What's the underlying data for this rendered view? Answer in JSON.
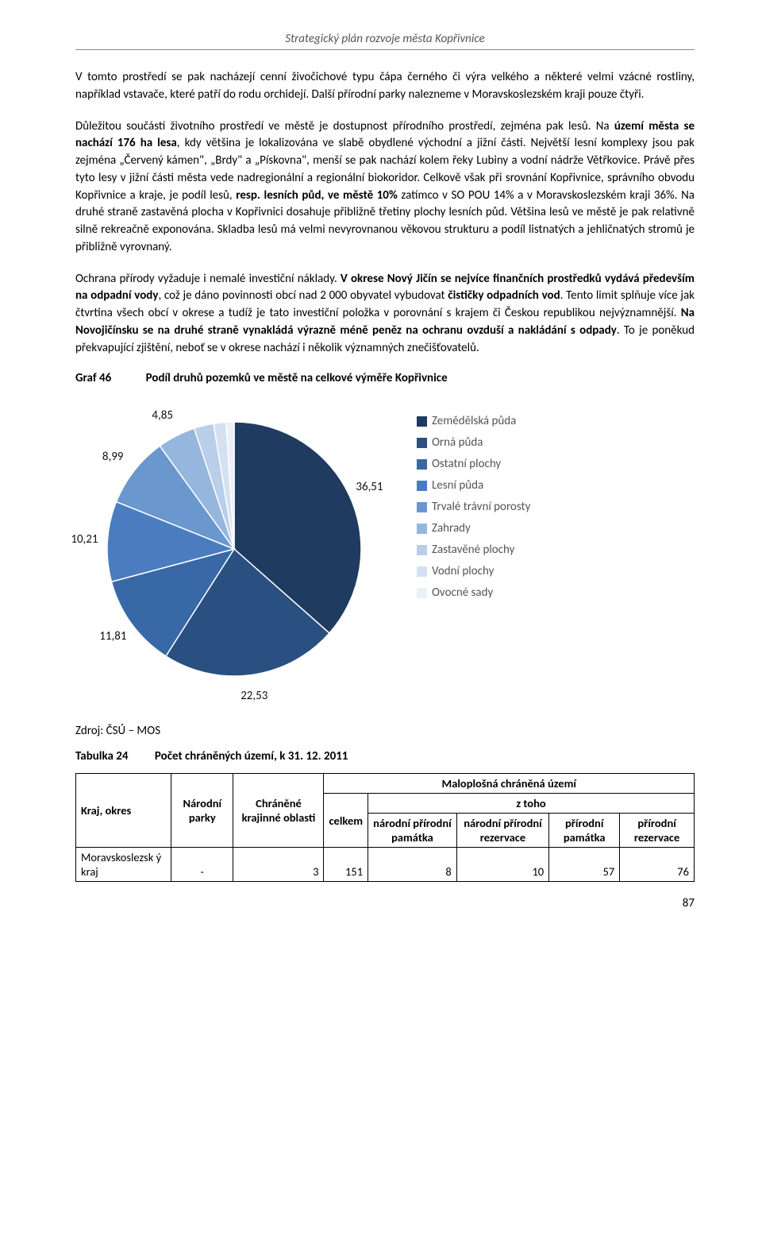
{
  "header": {
    "title": "Strategický plán rozvoje města Kopřivnice"
  },
  "para1": "V tomto prostředí se pak nacházejí cenní živočichové typu čápa černého či výra velkého a některé velmi vzácné rostliny, například vstavače, které patří do rodu orchidejí. Další přírodní parky nalezneme v Moravskoslezském kraji pouze čtyři.",
  "para2_pre": "Důležitou součástí životního prostředí ve městě je dostupnost přírodního prostředí, zejména pak lesů. Na ",
  "para2_b1": "území města se nachází 176 ha lesa",
  "para2_mid1": ", kdy většina je lokalizována ve slabě obydlené východní a jižní části. Největší lesní komplexy jsou pak zejména „Červený kámen\", „Brdy\" a „Pískovna\", menší se pak nachází kolem řeky Lubiny a vodní nádrže Větřkovice. Právě přes tyto lesy v jižní části města vede nadregionální a regionální biokoridor. Celkově však při srovnání Kopřivnice, správního obvodu Kopřivnice a kraje, je podíl lesů, ",
  "para2_b2": "resp. lesních půd, ve městě 10%",
  "para2_mid2": " zatímco v SO POU 14% a v Moravskoslezském kraji 36%. Na druhé straně zastavěná plocha v Kopřivnici dosahuje přibližně třetiny plochy lesních půd. Většina lesů ve městě je pak relativně silně rekreačně exponována. Skladba lesů má velmi nevyrovnanou věkovou strukturu a podíl listnatých a jehličnatých stromů je přibližně vyrovnaný.",
  "para3_pre": "Ochrana přírody vyžaduje i nemalé investiční náklady. ",
  "para3_b1": "V okrese Nový Jičín se nejvíce finančních prostředků vydává především na odpadní vody",
  "para3_mid1": ", což je dáno povinnosti obcí nad 2 000 obyvatel vybudovat ",
  "para3_b2": "čističky odpadních vod",
  "para3_mid2": ". Tento limit splňuje více jak čtvrtina všech obcí v okrese a tudíž je tato investiční položka v porovnání s krajem či Českou republikou nejvýznamnější. ",
  "para3_b3": "Na Novojičínsku se na druhé straně vynakládá výrazně méně peněz na ochranu ovzduší a nakládání s odpady",
  "para3_end": ". To je poněkud překvapující zjištění, neboť se v okrese nachází i několik významných znečišťovatelů.",
  "graf": {
    "label": "Graf 46",
    "title": "Podíl druhů pozemků ve městě na celkové výměře Kopřivnice"
  },
  "chart": {
    "type": "pie",
    "slices": [
      {
        "label": "Zemědělská půda",
        "value": 36.51,
        "color": "#1f3b60",
        "text": "36,51"
      },
      {
        "label": "Orná půda",
        "value": 22.53,
        "color": "#2a5082",
        "text": "22,53"
      },
      {
        "label": "Ostatní plochy",
        "value": 11.81,
        "color": "#3868a6",
        "text": "11,81"
      },
      {
        "label": "Lesní půda",
        "value": 10.21,
        "color": "#4a7cbf",
        "text": "10,21"
      },
      {
        "label": "Trvalé trávní porosty",
        "value": 8.99,
        "color": "#6b97cf",
        "text": "8,99"
      },
      {
        "label": "Zahrady",
        "value": 4.85,
        "color": "#95b6dd",
        "text": "4,85"
      },
      {
        "label": "Zastavěné plochy",
        "value": 2.5,
        "color": "#b9cee9",
        "text": ""
      },
      {
        "label": "Vodní plochy",
        "value": 1.6,
        "color": "#d5e1f1",
        "text": ""
      },
      {
        "label": "Ovocné sady",
        "value": 1.0,
        "color": "#eaf0f8",
        "text": ""
      }
    ],
    "background": "#ffffff",
    "label_fontsize": 15,
    "label_color": "#ffffff",
    "legend_fontsize": 15
  },
  "source": "Zdroj: ČSÚ – MOS",
  "table": {
    "label": "Tabulka 24",
    "title": "Počet chráněných území, k 31. 12. 2011",
    "headers": {
      "c1": "Kraj, okres",
      "c2": "Národní parky",
      "c3": "Chráněné krajinné oblasti",
      "g1": "Maloplošná chráněná území",
      "g2": "z toho",
      "c4": "celkem",
      "c5": "národní přírodní památka",
      "c6": "národní přírodní rezervace",
      "c7": "přírodní památka",
      "c8": "přírodní rezervace"
    },
    "row": {
      "name": "Moravskoslezsk ý kraj",
      "v1": "-",
      "v2": "3",
      "v3": "151",
      "v4": "8",
      "v5": "10",
      "v6": "57",
      "v7": "76"
    }
  },
  "page_number": "87"
}
